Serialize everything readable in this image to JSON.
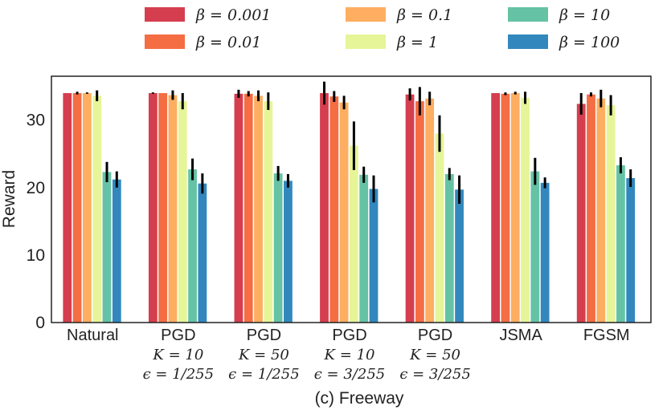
{
  "chart_data": {
    "type": "bar",
    "title": "(c) Freeway",
    "ylabel": "Reward",
    "xlabel": "",
    "ylim": [
      0,
      36.5
    ],
    "yticks": [
      "0",
      "10",
      "20",
      "30"
    ],
    "ytick_values": [
      0,
      10,
      20,
      30
    ],
    "grid": false,
    "legend_position": "top-center",
    "categories": [
      {
        "lines": [
          "Natural"
        ]
      },
      {
        "lines": [
          "PGD",
          "K = 10",
          "ϵ = 1/255"
        ]
      },
      {
        "lines": [
          "PGD",
          "K = 50",
          "ϵ = 1/255"
        ]
      },
      {
        "lines": [
          "PGD",
          "K = 10",
          "ϵ = 3/255"
        ]
      },
      {
        "lines": [
          "PGD",
          "K = 50",
          "ϵ = 3/255"
        ]
      },
      {
        "lines": [
          "JSMA"
        ]
      },
      {
        "lines": [
          "FGSM"
        ]
      }
    ],
    "series": [
      {
        "name": "β = 0.001",
        "color": "#d53e4f",
        "values": [
          34.0,
          34.0,
          33.9,
          34.0,
          33.8,
          34.0,
          32.4
        ],
        "errors": [
          0.0,
          0.1,
          0.6,
          1.7,
          0.9,
          0.0,
          1.6
        ]
      },
      {
        "name": "β = 0.01",
        "color": "#f46d43",
        "values": [
          34.0,
          34.0,
          33.9,
          33.5,
          32.8,
          33.9,
          33.8
        ],
        "errors": [
          0.2,
          0.0,
          0.4,
          0.8,
          2.1,
          0.2,
          0.3
        ]
      },
      {
        "name": "β = 0.1",
        "color": "#fdae61",
        "values": [
          34.0,
          33.7,
          33.6,
          32.6,
          33.2,
          34.0,
          33.2
        ],
        "errors": [
          0.1,
          0.7,
          0.8,
          1.0,
          1.0,
          0.2,
          1.3
        ]
      },
      {
        "name": "β = 1",
        "color": "#e6f598",
        "values": [
          33.6,
          32.8,
          32.8,
          26.2,
          28.0,
          33.3,
          32.2
        ],
        "errors": [
          0.8,
          1.2,
          1.3,
          3.6,
          2.7,
          0.9,
          1.5
        ]
      },
      {
        "name": "β = 10",
        "color": "#66c2a5",
        "values": [
          22.3,
          22.7,
          22.1,
          21.9,
          22.0,
          22.4,
          23.3
        ],
        "errors": [
          1.5,
          1.6,
          1.1,
          1.2,
          0.9,
          2.0,
          1.2
        ]
      },
      {
        "name": "β = 100",
        "color": "#3288bd",
        "values": [
          21.2,
          20.6,
          21.0,
          19.8,
          19.7,
          20.7,
          21.4
        ],
        "errors": [
          1.2,
          1.5,
          1.0,
          2.0,
          2.1,
          0.8,
          1.3
        ]
      }
    ]
  }
}
